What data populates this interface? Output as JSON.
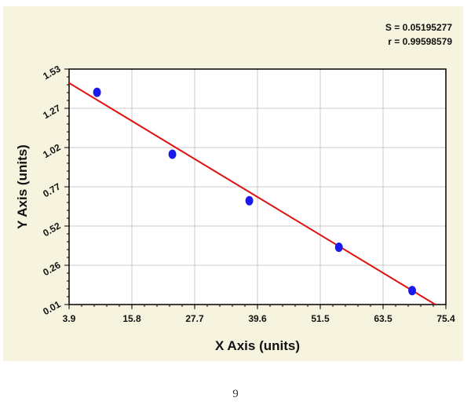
{
  "page": {
    "number": "9"
  },
  "stats": {
    "s_label": "S = 0.05195277",
    "r_label": "r = 0.99598579"
  },
  "colors": {
    "background": "#f6f4df",
    "plot_area": "#ffffff",
    "points": "#1a1aee",
    "fit_line": "#e01010",
    "grid": "#c8c8c8"
  },
  "chart_data": {
    "type": "scatter",
    "xlabel": "X Axis (units)",
    "ylabel": "Y Axis (units)",
    "xlim": [
      3.9,
      75.4
    ],
    "ylim": [
      0.01,
      1.53
    ],
    "x_ticks": [
      "3.9",
      "15.8",
      "27.7",
      "39.6",
      "51.5",
      "63.5",
      "75.4"
    ],
    "y_ticks": [
      "0.01",
      "0.26",
      "0.52",
      "0.77",
      "1.02",
      "1.27",
      "1.53"
    ],
    "grid": true,
    "points": [
      {
        "x": 9.2,
        "y": 1.38
      },
      {
        "x": 23.5,
        "y": 0.98
      },
      {
        "x": 38.1,
        "y": 0.68
      },
      {
        "x": 55.1,
        "y": 0.38
      },
      {
        "x": 69.0,
        "y": 0.1
      }
    ],
    "fit_line": {
      "x0": 3.9,
      "y0": 1.44,
      "x1": 73.4,
      "y1": 0.01
    }
  }
}
